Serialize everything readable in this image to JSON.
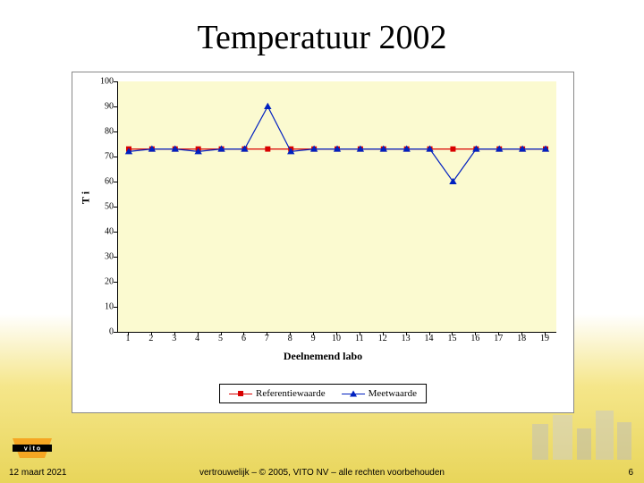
{
  "title": "Temperatuur 2002",
  "chart": {
    "type": "line",
    "plot_bg": "#fbfad0",
    "xlabel": "Deelnemend labo",
    "ylabel": "T i",
    "ylim": [
      0,
      100
    ],
    "ytick_step": 10,
    "xvalues": [
      1,
      2,
      3,
      4,
      5,
      6,
      7,
      8,
      9,
      10,
      11,
      12,
      13,
      14,
      15,
      16,
      17,
      18,
      19
    ],
    "series": [
      {
        "name": "Referentiewaarde",
        "color": "#d90000",
        "marker": "square",
        "values": [
          73,
          73,
          73,
          73,
          73,
          73,
          73,
          73,
          73,
          73,
          73,
          73,
          73,
          73,
          73,
          73,
          73,
          73,
          73
        ]
      },
      {
        "name": "Meetwaarde",
        "color": "#0020c0",
        "marker": "triangle",
        "values": [
          72,
          73,
          73,
          72,
          73,
          73,
          90,
          72,
          73,
          73,
          73,
          73,
          73,
          73,
          60,
          73,
          73,
          73,
          73
        ]
      }
    ],
    "marker_size": 6,
    "line_width": 1.2,
    "label_fontsize": 12,
    "tick_fontsize": 10
  },
  "footer": {
    "date": "12 maart 2021",
    "copyright": "vertrouwelijk – © 2005, VITO NV – alle rechten voorbehouden",
    "page": "6"
  },
  "logo": {
    "name": "vito-logo",
    "colors": {
      "orange": "#f5a623",
      "black": "#000000",
      "white": "#ffffff"
    }
  }
}
